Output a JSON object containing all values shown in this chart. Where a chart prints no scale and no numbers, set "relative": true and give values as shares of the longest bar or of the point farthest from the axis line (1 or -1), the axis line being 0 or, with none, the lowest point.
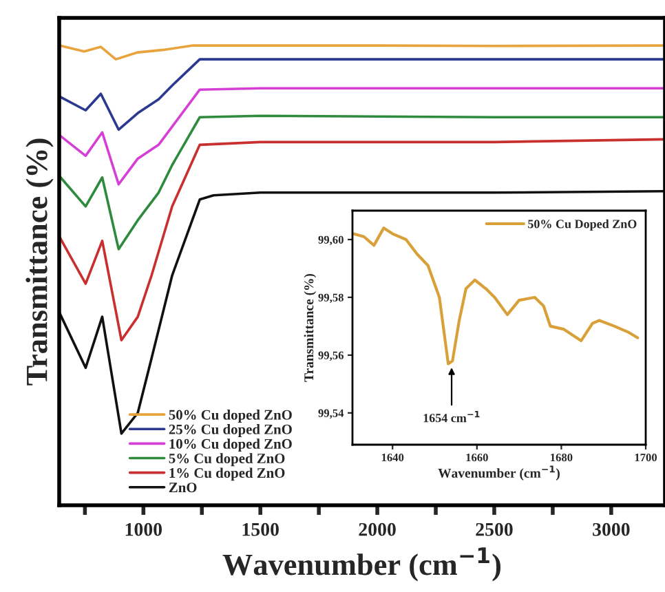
{
  "chart_data": [
    {
      "type": "line",
      "relative": true,
      "xlabel": "Wavenumber (cm$^{−1}$)",
      "ylabel": "Transmittance (%)",
      "xlim": [
        640,
        3230
      ],
      "xticks": [
        {
          "value": 750,
          "label": null
        },
        1000,
        {
          "value": 1250,
          "label": null
        },
        1500,
        {
          "value": 1750,
          "label": null
        },
        2000,
        {
          "value": 2250,
          "label": null
        },
        2500,
        {
          "value": 2750,
          "label": null
        },
        3000
      ],
      "legend": "bottom left",
      "grid": false,
      "series": [
        {
          "name": "50% Cu doped ZnO",
          "color": "#e8a33d",
          "x": [
            641,
            747,
            818,
            882,
            976,
            1094,
            1212,
            1400,
            2000,
            2500,
            3229
          ],
          "values": [
            1.0,
            0.987,
            0.997,
            0.97,
            0.985,
            0.991,
            1.0,
            1.0,
            1.0,
            0.999,
            1.0
          ]
        },
        {
          "name": "25% Cu doped ZnO",
          "color": "#2b3990",
          "x": [
            641,
            753,
            818,
            894,
            976,
            1065,
            1123,
            1241,
            1500,
            2500,
            3229
          ],
          "values": [
            0.889,
            0.859,
            0.895,
            0.817,
            0.853,
            0.883,
            0.913,
            0.97,
            0.97,
            0.97,
            0.97
          ]
        },
        {
          "name": "10% Cu doped ZnO",
          "color": "#d63fd6",
          "x": [
            641,
            753,
            824,
            894,
            976,
            1065,
            1153,
            1241,
            1500,
            2500,
            3229
          ],
          "values": [
            0.805,
            0.76,
            0.811,
            0.698,
            0.754,
            0.784,
            0.844,
            0.904,
            0.907,
            0.907,
            0.907
          ]
        },
        {
          "name": "5% Cu doped ZnO",
          "color": "#2e8b3e",
          "x": [
            641,
            753,
            824,
            894,
            976,
            1065,
            1123,
            1241,
            1500,
            2500,
            3229
          ],
          "values": [
            0.716,
            0.65,
            0.713,
            0.557,
            0.62,
            0.68,
            0.74,
            0.844,
            0.847,
            0.844,
            0.844
          ]
        },
        {
          "name": "1% Cu doped ZnO",
          "color": "#c8302f",
          "x": [
            641,
            753,
            824,
            906,
            976,
            1035,
            1123,
            1241,
            1500,
            2500,
            3229
          ],
          "values": [
            0.584,
            0.482,
            0.575,
            0.359,
            0.41,
            0.5,
            0.65,
            0.784,
            0.79,
            0.79,
            0.796
          ]
        },
        {
          "name": "ZnO",
          "color": "#111111",
          "x": [
            641,
            753,
            824,
            906,
            976,
            1035,
            1123,
            1241,
            1300,
            1500,
            2500,
            3229
          ],
          "values": [
            0.419,
            0.299,
            0.41,
            0.156,
            0.201,
            0.32,
            0.5,
            0.665,
            0.674,
            0.68,
            0.68,
            0.683
          ]
        }
      ]
    },
    {
      "type": "line",
      "xlabel": "Wavenumber (cm$^{−1}$)",
      "ylabel": "Transmittance (%)",
      "xlim": [
        1630.5,
        1700
      ],
      "ylim": [
        99.529,
        99.61
      ],
      "xticks": [
        1640,
        1660,
        1680,
        1700
      ],
      "yticks": [
        {
          "value": 99.54,
          "label": "99,54"
        },
        {
          "value": 99.56,
          "label": "99,56"
        },
        {
          "value": 99.58,
          "label": "99,58"
        },
        {
          "value": 99.6,
          "label": "99,60"
        }
      ],
      "legend": "top right",
      "grid": false,
      "annotations": [
        {
          "text": "1654 cm$^{−1}$",
          "x": 1654,
          "y": 99.557
        }
      ],
      "series": [
        {
          "name": "50% Cu Doped ZnO",
          "color": "#d9a03a",
          "x": [
            1630.7,
            1633.2,
            1635.6,
            1637.9,
            1640,
            1643.2,
            1645.8,
            1648.4,
            1651.1,
            1653.2,
            1654.2,
            1655.8,
            1657.4,
            1659.5,
            1662.1,
            1664.2,
            1667.2,
            1670,
            1673.7,
            1675.8,
            1677.4,
            1680.5,
            1684.7,
            1687.4,
            1689,
            1692.6,
            1695.8,
            1698.1
          ],
          "values": [
            99.602,
            99.601,
            99.598,
            99.604,
            99.602,
            99.6,
            99.595,
            99.591,
            99.58,
            99.557,
            99.558,
            99.572,
            99.583,
            99.586,
            99.583,
            99.58,
            99.574,
            99.579,
            99.58,
            99.577,
            99.57,
            99.569,
            99.565,
            99.571,
            99.572,
            99.57,
            99.568,
            99.566
          ]
        }
      ]
    }
  ]
}
